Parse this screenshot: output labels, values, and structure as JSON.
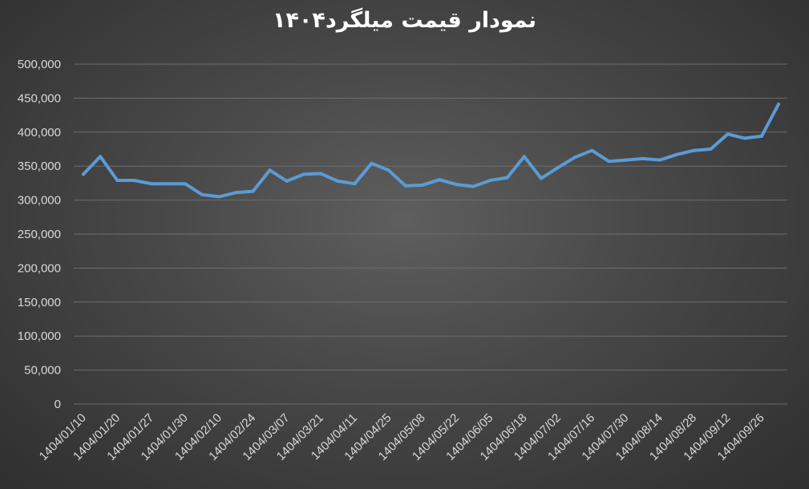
{
  "chart_data": {
    "type": "line",
    "title": "نمودار قیمت میلگرد۱۴۰۴",
    "xlabel": "",
    "ylabel": "",
    "ylim": [
      0,
      500000
    ],
    "y_ticks": [
      "0",
      "50,000",
      "100,000",
      "150,000",
      "200,000",
      "250,000",
      "300,000",
      "350,000",
      "400,000",
      "450,000",
      "500,000"
    ],
    "x_tick_labels": [
      "1404/01/10",
      "1404/01/20",
      "1404/01/27",
      "1404/01/30",
      "1404/02/10",
      "1404/02/24",
      "1404/03/07",
      "1404/03/21",
      "1404/04/11",
      "1404/04/25",
      "1404/05/08",
      "1404/05/22",
      "1404/06/05",
      "1404/06/18",
      "1404/07/02",
      "1404/07/16",
      "1404/07/30",
      "1404/08/14",
      "1404/08/28",
      "1404/09/12",
      "1404/09/26"
    ],
    "grid": true,
    "line_color": "#5b9bd5",
    "series": [
      {
        "values": [
          338000,
          364000,
          329000,
          329000,
          324000,
          324000,
          324000,
          308000,
          305000,
          311000,
          313000,
          344000,
          328000,
          338000,
          339000,
          328000,
          324000,
          354000,
          344000,
          321000,
          322000,
          330000,
          323000,
          320000,
          329000,
          333000,
          364000,
          332000,
          348000,
          363000,
          373000,
          357000,
          359000,
          361000,
          359000,
          367000,
          373000,
          375000,
          397000,
          391000,
          394000,
          441000
        ]
      }
    ]
  }
}
